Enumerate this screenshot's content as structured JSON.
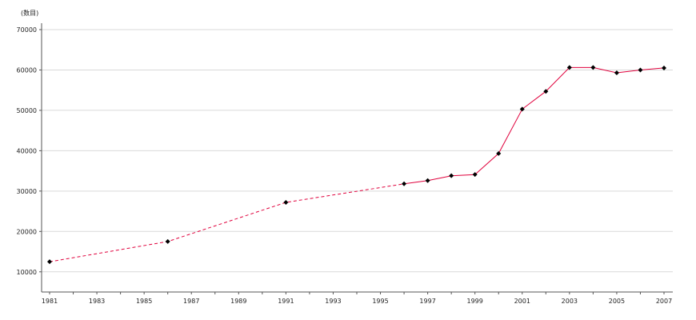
{
  "chart_data": {
    "type": "line",
    "y_unit_label": "(数目)",
    "xlim": [
      1981,
      2007
    ],
    "ylim": [
      5000,
      70000
    ],
    "x_ticks": [
      "1981",
      "1983",
      "1985",
      "1987",
      "1989",
      "1991",
      "1993",
      "1995",
      "1997",
      "1999",
      "2001",
      "2003",
      "2005",
      "2007"
    ],
    "y_ticks": [
      "10000",
      "20000",
      "30000",
      "40000",
      "50000",
      "60000",
      "70000"
    ],
    "grid": true,
    "line_color": "#e0003c",
    "marker_color": "#000000",
    "series": [
      {
        "style": "dashed",
        "points": [
          {
            "x": 1981,
            "y": 12500
          },
          {
            "x": 1986,
            "y": 17500
          },
          {
            "x": 1991,
            "y": 27200
          },
          {
            "x": 1996,
            "y": 31800
          }
        ]
      },
      {
        "style": "solid",
        "points": [
          {
            "x": 1996,
            "y": 31800
          },
          {
            "x": 1997,
            "y": 32600
          },
          {
            "x": 1998,
            "y": 33800
          },
          {
            "x": 1999,
            "y": 34100
          },
          {
            "x": 2000,
            "y": 39300
          },
          {
            "x": 2001,
            "y": 50300
          },
          {
            "x": 2002,
            "y": 54700
          },
          {
            "x": 2003,
            "y": 60600
          },
          {
            "x": 2004,
            "y": 60600
          },
          {
            "x": 2005,
            "y": 59300
          },
          {
            "x": 2006,
            "y": 60000
          },
          {
            "x": 2007,
            "y": 60500
          }
        ]
      }
    ],
    "markers": [
      {
        "x": 1981,
        "y": 12500
      },
      {
        "x": 1986,
        "y": 17500
      },
      {
        "x": 1991,
        "y": 27200
      },
      {
        "x": 1996,
        "y": 31800
      },
      {
        "x": 1997,
        "y": 32600
      },
      {
        "x": 1998,
        "y": 33800
      },
      {
        "x": 1999,
        "y": 34100
      },
      {
        "x": 2000,
        "y": 39300
      },
      {
        "x": 2001,
        "y": 50300
      },
      {
        "x": 2002,
        "y": 54700
      },
      {
        "x": 2003,
        "y": 60600
      },
      {
        "x": 2004,
        "y": 60600
      },
      {
        "x": 2005,
        "y": 59300
      },
      {
        "x": 2006,
        "y": 60000
      },
      {
        "x": 2007,
        "y": 60500
      }
    ]
  }
}
